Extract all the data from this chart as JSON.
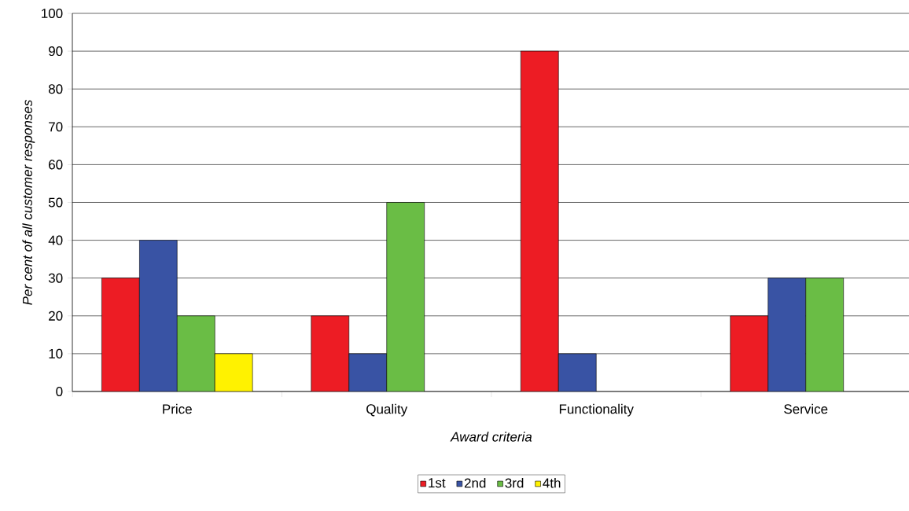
{
  "chart_data": {
    "type": "bar",
    "xlabel": "Award criteria",
    "ylabel": "Per cent of all customer responses",
    "categories": [
      "Price",
      "Quality",
      "Functionality",
      "Service"
    ],
    "series": [
      {
        "name": "1st",
        "color": "#ed1c24",
        "values": [
          30,
          20,
          90,
          20
        ]
      },
      {
        "name": "2nd",
        "color": "#3953a4",
        "values": [
          40,
          10,
          10,
          30
        ]
      },
      {
        "name": "3rd",
        "color": "#6abd45",
        "values": [
          20,
          50,
          null,
          30
        ]
      },
      {
        "name": "4th",
        "color": "#fff200",
        "values": [
          10,
          null,
          null,
          null
        ]
      }
    ],
    "ylim": [
      0,
      100
    ],
    "yticks": [
      0,
      10,
      20,
      30,
      40,
      50,
      60,
      70,
      80,
      90,
      100
    ],
    "grid": "y",
    "legend": "bottom"
  }
}
